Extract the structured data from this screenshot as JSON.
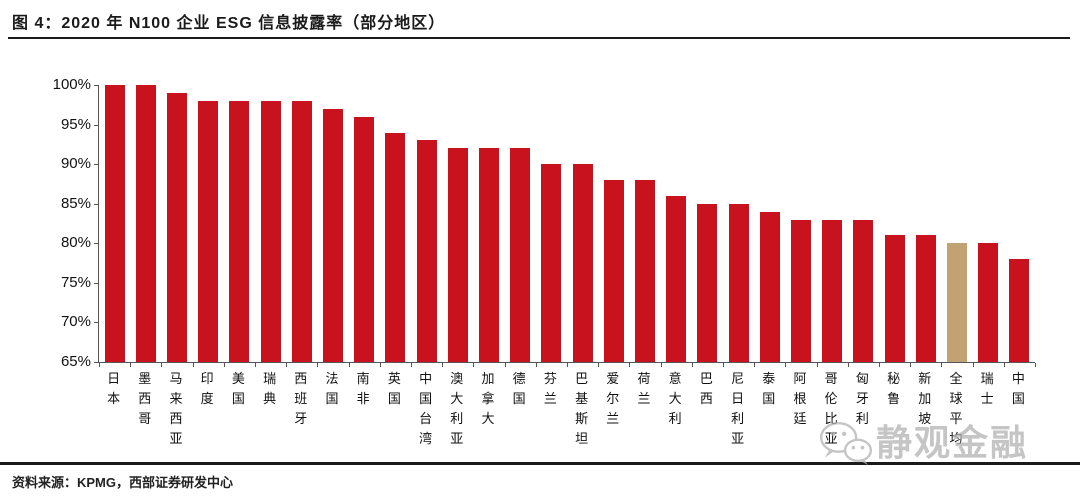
{
  "figure": {
    "title": "图 4：2020 年 N100 企业 ESG 信息披露率（部分地区）",
    "source": "资料来源：KPMG，西部证券研发中心",
    "watermark": "静观金融"
  },
  "colors": {
    "bar": "#c8121e",
    "highlight": "#c2a172",
    "axis": "#555555",
    "rule": "#1a1a1a",
    "watermark": "#b2b2b2"
  },
  "chart_data": {
    "type": "bar",
    "title": "2020 年 N100 企业 ESG 信息披露率（部分地区）",
    "categories": [
      "日本",
      "墨西哥",
      "马来西亚",
      "印度",
      "美国",
      "瑞典",
      "西班牙",
      "法国",
      "南非",
      "英国",
      "中国台湾",
      "澳大利亚",
      "加拿大",
      "德国",
      "芬兰",
      "巴基斯坦",
      "爱尔兰",
      "荷兰",
      "意大利",
      "巴西",
      "尼日利亚",
      "泰国",
      "阿根廷",
      "哥伦比亚",
      "匈牙利",
      "秘鲁",
      "新加坡",
      "全球平均",
      "瑞士",
      "中国"
    ],
    "values": [
      100,
      100,
      99,
      98,
      98,
      98,
      98,
      97,
      96,
      94,
      93,
      92,
      92,
      92,
      90,
      90,
      88,
      88,
      86,
      85,
      85,
      84,
      83,
      83,
      83,
      81,
      81,
      80,
      80,
      78
    ],
    "unit": "%",
    "xlabel": "",
    "ylabel": "",
    "ylim": [
      65,
      100
    ],
    "ytick_step": 5,
    "ytick_labels": [
      "100%",
      "95%",
      "90%",
      "85%",
      "80%",
      "75%",
      "70%",
      "65%"
    ],
    "grid": false,
    "legend": null,
    "bar_color": "#c8121e",
    "highlight_index": 27,
    "highlight_color": "#c2a172",
    "highlight_category": "全球平均"
  }
}
